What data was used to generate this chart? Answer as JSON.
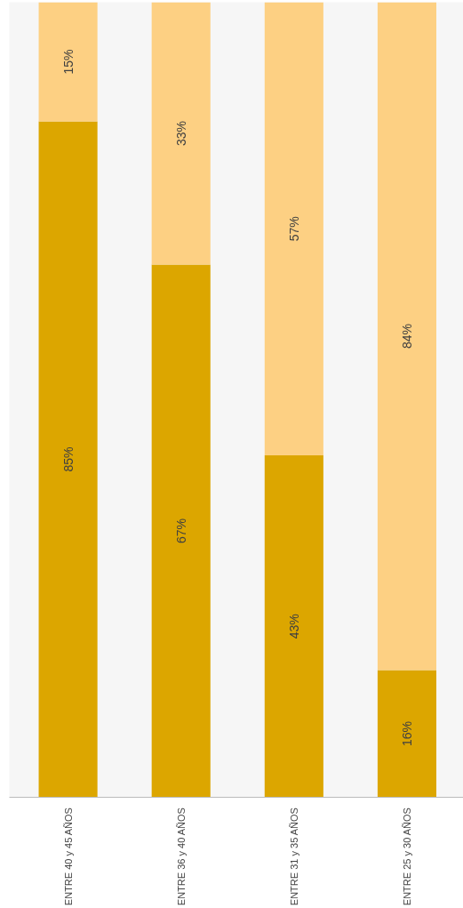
{
  "chart_data": {
    "type": "bar",
    "stacked": true,
    "categories": [
      "ENTRE 40 y 45 AÑOS",
      "ENTRE 36 y 40 AÑOS",
      "ENTRE 31 y 35 AÑOS",
      "ENTRE 25 y 30 AÑOS"
    ],
    "series": [
      {
        "color": "#dca600",
        "values": [
          85,
          67,
          43,
          16
        ],
        "value_labels": [
          "85%",
          "67%",
          "43%",
          "16%"
        ]
      },
      {
        "color": "#fdd083",
        "values": [
          15,
          33,
          57,
          84
        ],
        "value_labels": [
          "15%",
          "33%",
          "57%",
          "84%"
        ]
      }
    ],
    "grid": false
  }
}
